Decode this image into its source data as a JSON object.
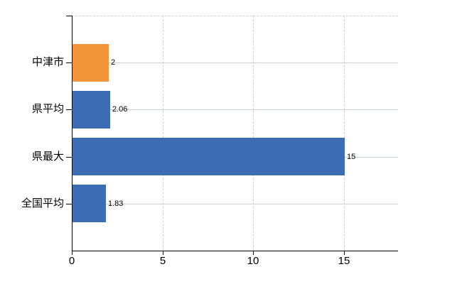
{
  "chart_data": {
    "type": "bar",
    "orientation": "horizontal",
    "title": "",
    "xlabel": "",
    "ylabel": "",
    "categories": [
      "中津市",
      "県平均",
      "県最大",
      "全国平均"
    ],
    "values": [
      2,
      2.06,
      15,
      1.83
    ],
    "value_labels": [
      "2",
      "2.06",
      "15",
      "1.83"
    ],
    "bar_colors": [
      "#F2943A",
      "#3C6DB4",
      "#3C6DB4",
      "#3C6DB4"
    ],
    "xlim": [
      0,
      18
    ],
    "x_ticks": [
      0,
      5,
      10,
      15
    ],
    "x_tick_labels": [
      "0",
      "5",
      "10",
      "15"
    ],
    "grid": true,
    "legend": false
  },
  "colors": {
    "axis": "#000000",
    "h_gridline": "#ccd3cc",
    "v_gridline": "#d6ced6",
    "background": "#ffffff",
    "bar_blue": "#3C6DB4",
    "bar_orange": "#F2943A",
    "text": "#000000"
  }
}
